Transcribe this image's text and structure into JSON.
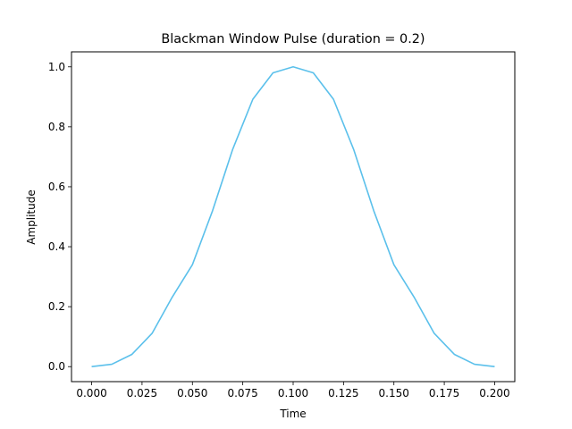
{
  "chart_data": {
    "type": "line",
    "title": "Blackman Window Pulse (duration = 0.2)",
    "xlabel": "Time",
    "ylabel": "Amplitude",
    "xlim": [
      -0.01,
      0.21
    ],
    "ylim": [
      -0.05,
      1.05
    ],
    "grid": false,
    "x_ticks": [
      "0.000",
      "0.025",
      "0.050",
      "0.075",
      "0.100",
      "0.125",
      "0.150",
      "0.175",
      "0.200"
    ],
    "y_ticks": [
      "0.0",
      "0.2",
      "0.4",
      "0.6",
      "0.8",
      "1.0"
    ],
    "series": [
      {
        "color": "#5bc0eb",
        "x": [
          0.0,
          0.01,
          0.02,
          0.03,
          0.04,
          0.05,
          0.06,
          0.07,
          0.08,
          0.09,
          0.1,
          0.11,
          0.12,
          0.13,
          0.14,
          0.15,
          0.16,
          0.17,
          0.18,
          0.19,
          0.2
        ],
        "y": [
          0.0,
          0.008,
          0.041,
          0.111,
          0.232,
          0.34,
          0.52,
          0.725,
          0.892,
          0.98,
          1.0,
          0.98,
          0.892,
          0.725,
          0.52,
          0.34,
          0.232,
          0.111,
          0.041,
          0.008,
          0.0
        ]
      }
    ]
  }
}
